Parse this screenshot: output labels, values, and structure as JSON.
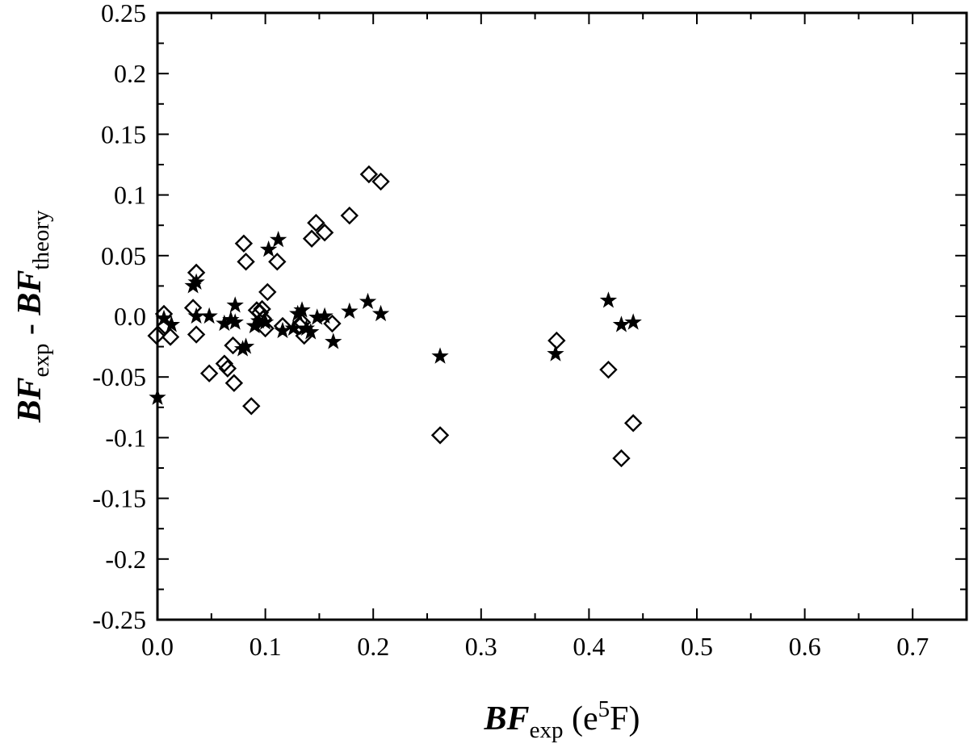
{
  "chart_data": {
    "type": "scatter",
    "title": "",
    "xlabel": {
      "main": "BF",
      "sub": "exp",
      "unit_pre": " (e",
      "unit_sup": "5",
      "unit_post": "F)"
    },
    "ylabel": {
      "a": "BF",
      "a_sub": "exp",
      "sep": " - ",
      "b": "BF",
      "b_sub": "theory"
    },
    "xlim": [
      0.0,
      0.75
    ],
    "ylim": [
      -0.25,
      0.25
    ],
    "x_ticks": [
      0.0,
      0.1,
      0.2,
      0.3,
      0.4,
      0.5,
      0.6,
      0.7
    ],
    "x_tick_labels": [
      "0.0",
      "0.1",
      "0.2",
      "0.3",
      "0.4",
      "0.5",
      "0.6",
      "0.7"
    ],
    "y_ticks": [
      0.25,
      0.2,
      0.15,
      0.1,
      0.05,
      0.0,
      -0.05,
      -0.1,
      -0.15,
      -0.2,
      -0.25
    ],
    "y_tick_labels": [
      "0.25",
      "0.2",
      "0.15",
      "0.1",
      "0.05",
      "0.0",
      "-0.05",
      "-0.1",
      "-0.15",
      "-0.2",
      "-0.25"
    ],
    "grid": false,
    "legend": "none",
    "series": [
      {
        "marker": "diamond-open",
        "color": "#000000",
        "points": [
          [
            -0.001,
            -0.016
          ],
          [
            0.006,
            0.002
          ],
          [
            0.007,
            -0.008
          ],
          [
            0.012,
            -0.017
          ],
          [
            0.033,
            0.007
          ],
          [
            0.036,
            0.036
          ],
          [
            0.036,
            -0.015
          ],
          [
            0.048,
            -0.047
          ],
          [
            0.062,
            -0.039
          ],
          [
            0.065,
            -0.043
          ],
          [
            0.07,
            -0.024
          ],
          [
            0.071,
            -0.055
          ],
          [
            0.08,
            0.06
          ],
          [
            0.082,
            0.045
          ],
          [
            0.087,
            -0.074
          ],
          [
            0.092,
            0.005
          ],
          [
            0.095,
            0.003
          ],
          [
            0.097,
            0.006
          ],
          [
            0.098,
            -0.002
          ],
          [
            0.1,
            -0.01
          ],
          [
            0.102,
            0.02
          ],
          [
            0.111,
            0.045
          ],
          [
            0.116,
            -0.008
          ],
          [
            0.132,
            -0.008
          ],
          [
            0.134,
            -0.005
          ],
          [
            0.136,
            -0.016
          ],
          [
            0.143,
            0.064
          ],
          [
            0.147,
            0.077
          ],
          [
            0.155,
            0.069
          ],
          [
            0.162,
            -0.006
          ],
          [
            0.178,
            0.083
          ],
          [
            0.196,
            0.117
          ],
          [
            0.207,
            0.111
          ],
          [
            0.262,
            -0.098
          ],
          [
            0.37,
            -0.02
          ],
          [
            0.418,
            -0.044
          ],
          [
            0.43,
            -0.117
          ],
          [
            0.441,
            -0.088
          ]
        ]
      },
      {
        "marker": "star-filled",
        "color": "#000000",
        "points": [
          [
            0.0,
            -0.067
          ],
          [
            0.006,
            -0.002
          ],
          [
            0.013,
            -0.007
          ],
          [
            0.033,
            0.025
          ],
          [
            0.036,
            0.028
          ],
          [
            0.036,
            0.0
          ],
          [
            0.048,
            0.0
          ],
          [
            0.062,
            -0.006
          ],
          [
            0.068,
            -0.003
          ],
          [
            0.072,
            0.009
          ],
          [
            0.072,
            -0.005
          ],
          [
            0.079,
            -0.027
          ],
          [
            0.082,
            -0.025
          ],
          [
            0.09,
            -0.008
          ],
          [
            0.094,
            -0.004
          ],
          [
            0.1,
            -0.005
          ],
          [
            0.103,
            0.055
          ],
          [
            0.112,
            0.063
          ],
          [
            0.116,
            -0.012
          ],
          [
            0.126,
            -0.01
          ],
          [
            0.13,
            0.002
          ],
          [
            0.134,
            0.005
          ],
          [
            0.138,
            -0.01
          ],
          [
            0.142,
            -0.013
          ],
          [
            0.148,
            -0.001
          ],
          [
            0.155,
            0.0
          ],
          [
            0.163,
            -0.021
          ],
          [
            0.178,
            0.004
          ],
          [
            0.195,
            0.012
          ],
          [
            0.207,
            0.002
          ],
          [
            0.262,
            -0.033
          ],
          [
            0.369,
            -0.031
          ],
          [
            0.418,
            0.013
          ],
          [
            0.43,
            -0.007
          ],
          [
            0.441,
            -0.005
          ]
        ]
      }
    ]
  }
}
